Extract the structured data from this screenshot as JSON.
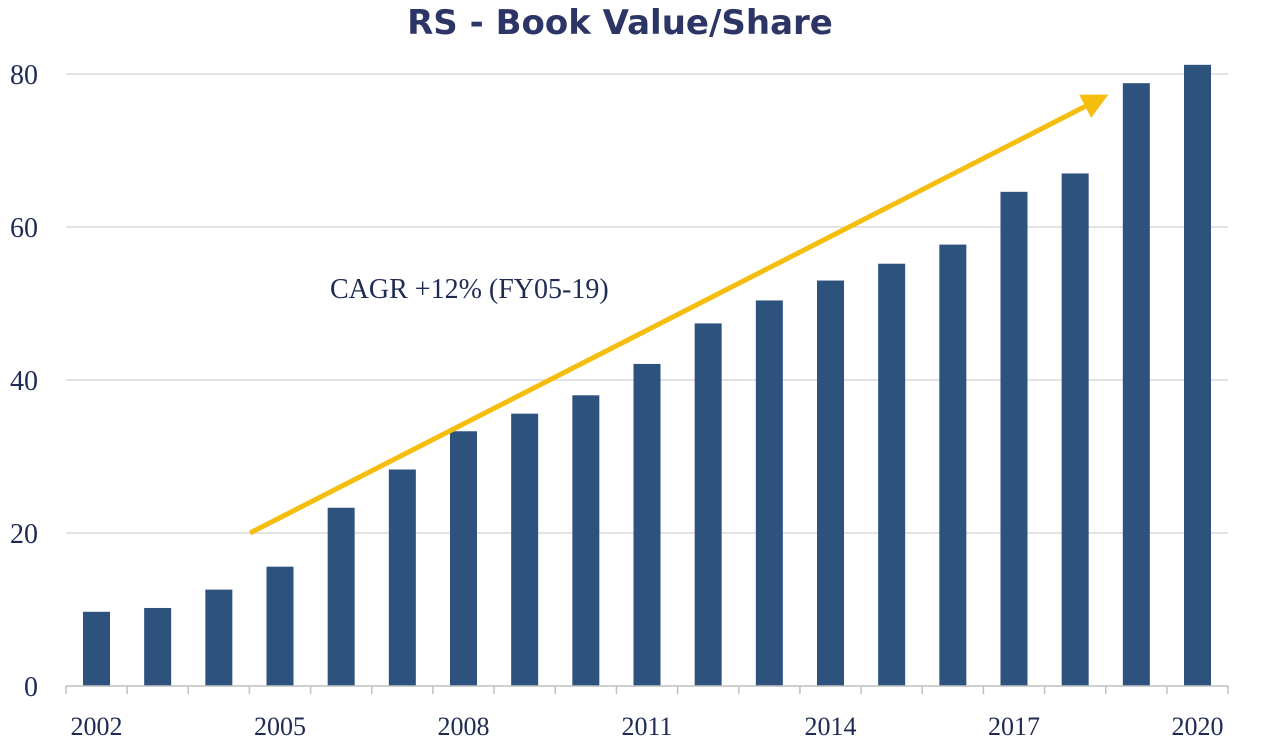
{
  "chart_data": {
    "type": "bar",
    "title": "RS - Book Value/Share",
    "xlabel": "",
    "ylabel": "",
    "categories": [
      "2002",
      "2003",
      "2004",
      "2005",
      "2006",
      "2007",
      "2008",
      "2009",
      "2010",
      "2011",
      "2012",
      "2013",
      "2014",
      "2015",
      "2016",
      "2017",
      "2018",
      "2019",
      "2020"
    ],
    "values": [
      9.7,
      10.2,
      12.6,
      15.6,
      23.3,
      28.3,
      33.3,
      35.6,
      38.0,
      42.1,
      47.4,
      50.4,
      53.0,
      55.2,
      57.7,
      64.6,
      67.0,
      78.8,
      81.2
    ],
    "ylim": [
      0,
      80
    ],
    "yticks": [
      "0",
      "20",
      "40",
      "60",
      "80"
    ],
    "xtick_labels": [
      "2002",
      "2005",
      "2008",
      "2011",
      "2014",
      "2017",
      "2020"
    ],
    "grid": true,
    "annotation": {
      "text": "CAGR +12% (FY05-19)",
      "arrow_from": {
        "x": "2005",
        "y": 20
      },
      "arrow_to": {
        "x": "2019",
        "y": 76
      }
    },
    "colors": {
      "bar": "#2E527E",
      "title": "#2C3565",
      "axis_text": "#1F2A55",
      "gridline": "#DADADA",
      "axis_line": "#BFBFBF",
      "arrow": "#F5BE0F"
    }
  }
}
